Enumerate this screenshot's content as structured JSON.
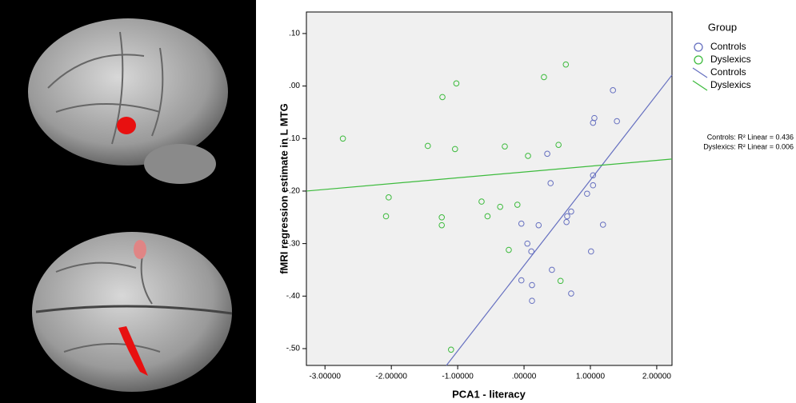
{
  "chart_data": {
    "type": "scatter",
    "x_label": "PCA1 - literacy",
    "y_label": "fMRI regression estimate in L MTG",
    "xlim": [
      -3.28,
      2.23
    ],
    "ylim": [
      -0.532,
      0.141
    ],
    "xticks": [
      {
        "value": -3,
        "label": "-3.00000"
      },
      {
        "value": -2,
        "label": "-2.00000"
      },
      {
        "value": -1,
        "label": "-1.00000"
      },
      {
        "value": 0,
        "label": ".00000"
      },
      {
        "value": 1,
        "label": "1.00000"
      },
      {
        "value": 2,
        "label": "2.00000"
      }
    ],
    "yticks": [
      {
        "value": 0.1,
        "label": ".10"
      },
      {
        "value": 0,
        "label": ".00"
      },
      {
        "value": -0.1,
        "label": "-.10"
      },
      {
        "value": -0.2,
        "label": "-.20"
      },
      {
        "value": -0.3,
        "label": "-.30"
      },
      {
        "value": -0.4,
        "label": "-.40"
      },
      {
        "value": -0.5,
        "label": "-.50"
      }
    ],
    "legend_title": "Group",
    "series": [
      {
        "name": "Controls",
        "color": "#6670c0",
        "x": [
          1.34,
          1.06,
          1.04,
          1.4,
          0.35,
          0.4,
          1.04,
          1.04,
          0.95,
          0.71,
          0.65,
          0.64,
          1.19,
          0.22,
          -0.04,
          0.05,
          0.11,
          1.01,
          0.42,
          -0.04,
          0.12,
          0.71,
          0.12
        ],
        "values": [
          -0.008,
          -0.061,
          -0.07,
          -0.067,
          -0.129,
          -0.185,
          -0.17,
          -0.189,
          -0.205,
          -0.239,
          -0.248,
          -0.259,
          -0.264,
          -0.265,
          -0.262,
          -0.3,
          -0.315,
          -0.315,
          -0.35,
          -0.37,
          -0.379,
          -0.395,
          -0.409
        ],
        "fit": {
          "x": [
            -1.17,
            2.23
          ],
          "values": [
            -0.532,
            0.021
          ]
        }
      },
      {
        "name": "Dyslexics",
        "color": "#3dbb3d",
        "x": [
          -2.73,
          -1.02,
          -1.23,
          0.3,
          0.63,
          -1.45,
          -1.04,
          -0.29,
          0.06,
          0.52,
          -2.04,
          -0.64,
          -0.1,
          -0.36,
          -2.08,
          -1.24,
          -1.24,
          -0.55,
          -0.23,
          0.55,
          -1.1
        ],
        "values": [
          -0.1,
          0.005,
          -0.021,
          0.017,
          0.041,
          -0.114,
          -0.12,
          -0.115,
          -0.133,
          -0.112,
          -0.212,
          -0.22,
          -0.226,
          -0.23,
          -0.248,
          -0.25,
          -0.265,
          -0.248,
          -0.312,
          -0.371,
          -0.502
        ],
        "fit": {
          "x": [
            -3.28,
            2.23
          ],
          "values": [
            -0.2,
            -0.139
          ]
        }
      }
    ],
    "annotations": [
      "Controls: R² Linear = 0.436",
      "Dyslexics: R² Linear = 0.006"
    ]
  }
}
